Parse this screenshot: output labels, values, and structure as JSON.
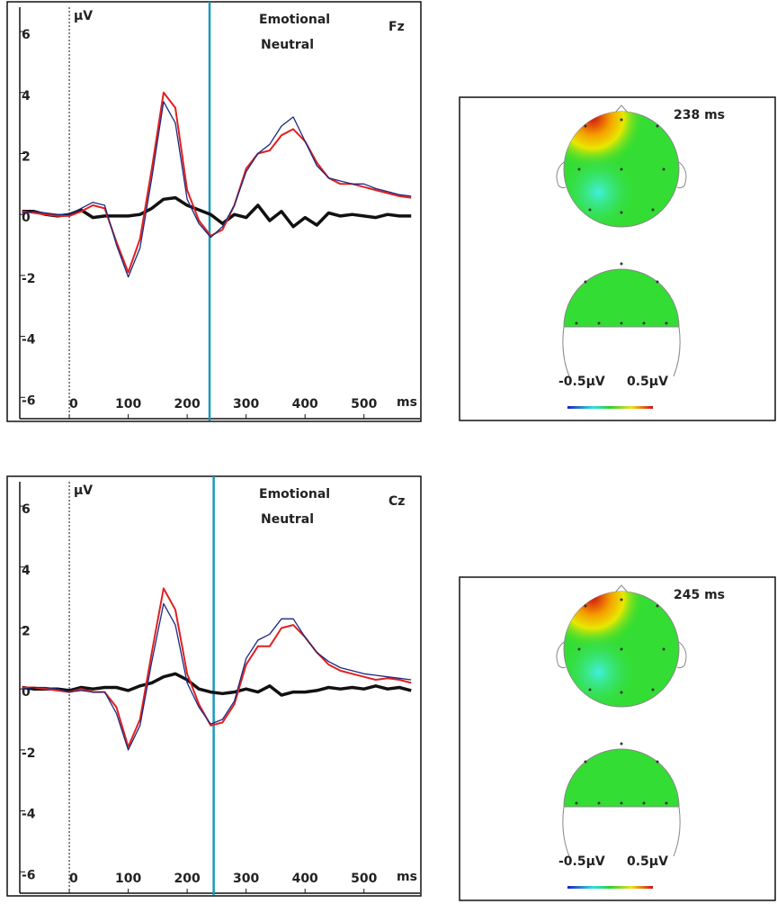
{
  "chart_data": [
    {
      "type": "line",
      "channel": "Fz",
      "y_label": "µV",
      "x_label": "ms",
      "x": [
        -80,
        -60,
        -40,
        -20,
        0,
        20,
        40,
        60,
        80,
        100,
        120,
        140,
        160,
        180,
        200,
        220,
        240,
        260,
        280,
        300,
        320,
        340,
        360,
        380,
        400,
        420,
        440,
        460,
        480,
        500,
        520,
        540,
        560,
        580
      ],
      "series": [
        {
          "name": "Emotional",
          "color": "#e02020",
          "values": [
            0.1,
            0.05,
            0,
            -0.05,
            -0.05,
            0.1,
            0.3,
            0.2,
            -0.9,
            -1.9,
            -0.8,
            1.5,
            4.0,
            3.5,
            0.8,
            -0.2,
            -0.7,
            -0.5,
            0.3,
            1.5,
            2.0,
            2.1,
            2.6,
            2.8,
            2.4,
            1.7,
            1.2,
            1.0,
            1.0,
            0.9,
            0.8,
            0.7,
            0.6,
            0.55
          ]
        },
        {
          "name": "Neutral",
          "color": "#1a2a80",
          "values": [
            0.05,
            0.1,
            0.05,
            0,
            0,
            0.2,
            0.4,
            0.3,
            -1.0,
            -2.05,
            -1.1,
            1.2,
            3.7,
            3.0,
            0.5,
            -0.3,
            -0.75,
            -0.4,
            0.3,
            1.4,
            2.0,
            2.3,
            2.9,
            3.2,
            2.4,
            1.6,
            1.2,
            1.1,
            1.0,
            1.0,
            0.85,
            0.75,
            0.65,
            0.6
          ]
        },
        {
          "color": "#111111",
          "values": [
            0.1,
            0.1,
            0,
            -0.05,
            0,
            0.15,
            -0.1,
            -0.05,
            -0.05,
            -0.05,
            0.0,
            0.2,
            0.5,
            0.55,
            0.3,
            0.15,
            0.0,
            -0.3,
            0.0,
            -0.1,
            0.3,
            -0.2,
            0.1,
            -0.4,
            -0.1,
            -0.35,
            0.05,
            -0.05,
            0.0,
            -0.05,
            -0.1,
            0.0,
            -0.05,
            -0.05
          ]
        }
      ],
      "cursor": 238,
      "cursor_color": "#1a9ab8",
      "xlim": [
        -84,
        595
      ],
      "xticks": [
        0,
        100,
        200,
        300,
        400,
        500
      ],
      "ylim": [
        -6.7,
        6.8
      ],
      "yticks": [
        6,
        4,
        2,
        0,
        -2,
        -4,
        -6
      ]
    },
    {
      "type": "line",
      "channel": "Cz",
      "y_label": "µV",
      "x_label": "ms",
      "x": [
        -80,
        -60,
        -40,
        -20,
        0,
        20,
        40,
        60,
        80,
        100,
        120,
        140,
        160,
        180,
        200,
        220,
        240,
        260,
        280,
        300,
        320,
        340,
        360,
        380,
        400,
        420,
        440,
        460,
        480,
        500,
        520,
        540,
        560,
        580
      ],
      "series": [
        {
          "name": "Emotional",
          "color": "#e02020",
          "values": [
            0.05,
            0.05,
            0,
            -0.05,
            -0.1,
            0,
            -0.1,
            -0.1,
            -0.6,
            -1.9,
            -1.0,
            1.2,
            3.3,
            2.6,
            0.5,
            -0.5,
            -1.2,
            -1.1,
            -0.5,
            0.8,
            1.4,
            1.4,
            2.0,
            2.1,
            1.7,
            1.2,
            0.8,
            0.6,
            0.5,
            0.4,
            0.3,
            0.35,
            0.3,
            0.2
          ]
        },
        {
          "name": "Neutral",
          "color": "#1a2a80",
          "values": [
            0,
            0.05,
            0.05,
            0,
            -0.1,
            -0.05,
            -0.1,
            -0.1,
            -0.8,
            -2.0,
            -1.2,
            0.9,
            2.8,
            2.1,
            0.2,
            -0.6,
            -1.15,
            -1.0,
            -0.4,
            1.0,
            1.6,
            1.8,
            2.3,
            2.3,
            1.7,
            1.2,
            0.9,
            0.7,
            0.6,
            0.5,
            0.45,
            0.4,
            0.35,
            0.3
          ]
        },
        {
          "color": "#111111",
          "values": [
            0.05,
            0,
            0,
            0,
            -0.05,
            0.05,
            0,
            0.05,
            0.05,
            -0.05,
            0.1,
            0.2,
            0.4,
            0.5,
            0.3,
            0.0,
            -0.1,
            -0.15,
            -0.1,
            0.0,
            -0.1,
            0.1,
            -0.2,
            -0.1,
            -0.1,
            -0.05,
            0.05,
            0.0,
            0.05,
            0.0,
            0.1,
            0.0,
            0.05,
            -0.05
          ]
        }
      ],
      "cursor": 245,
      "cursor_color": "#1a9ab8",
      "xlim": [
        -84,
        595
      ],
      "xticks": [
        0,
        100,
        200,
        300,
        400,
        500
      ],
      "ylim": [
        -6.7,
        6.8
      ],
      "yticks": [
        6,
        4,
        2,
        0,
        -2,
        -4,
        -6
      ]
    }
  ],
  "topomaps": [
    {
      "time_label": "238 ms",
      "scale_min_label": "-0.5µV",
      "scale_max_label": "0.5µV"
    },
    {
      "time_label": "245 ms",
      "scale_min_label": "-0.5µV",
      "scale_max_label": "0.5µV"
    }
  ]
}
